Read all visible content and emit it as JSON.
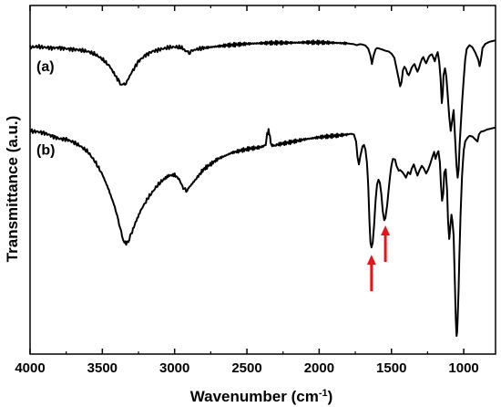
{
  "chart_data": {
    "type": "line",
    "xlabel": "Wavenumber (cm",
    "xlabel_superscript": "-1",
    "xlabel_suffix": ")",
    "ylabel": "Transmittance (a.u.)",
    "xlim": [
      4000,
      780
    ],
    "x_reversed": true,
    "ylim": [
      0,
      100
    ],
    "y_tick_labels": false,
    "x_ticks": [
      4000,
      3500,
      3000,
      2500,
      2000,
      1500,
      1000
    ],
    "x_tick_labels": [
      "4000",
      "3500",
      "3000",
      "2500",
      "2000",
      "1500",
      "1000"
    ],
    "grid": false,
    "series": [
      {
        "name": "(a)",
        "color": "#000000",
        "points": [
          [
            4000,
            88.0
          ],
          [
            3950,
            88.2
          ],
          [
            3900,
            88.0
          ],
          [
            3850,
            87.8
          ],
          [
            3800,
            87.9
          ],
          [
            3750,
            87.6
          ],
          [
            3700,
            87.4
          ],
          [
            3650,
            87.2
          ],
          [
            3600,
            86.8
          ],
          [
            3550,
            86.0
          ],
          [
            3500,
            84.6
          ],
          [
            3450,
            82.6
          ],
          [
            3420,
            80.6
          ],
          [
            3390,
            78.5
          ],
          [
            3370,
            77.4
          ],
          [
            3350,
            77.2
          ],
          [
            3330,
            78.2
          ],
          [
            3300,
            80.6
          ],
          [
            3250,
            84.0
          ],
          [
            3200,
            85.8
          ],
          [
            3150,
            86.9
          ],
          [
            3100,
            87.4
          ],
          [
            3050,
            87.9
          ],
          [
            3000,
            88.1
          ],
          [
            2950,
            87.9
          ],
          [
            2920,
            86.8
          ],
          [
            2900,
            86.4
          ],
          [
            2880,
            87.0
          ],
          [
            2850,
            87.4
          ],
          [
            2800,
            87.8
          ],
          [
            2700,
            88.3
          ],
          [
            2600,
            88.7
          ],
          [
            2500,
            89.0
          ],
          [
            2400,
            89.2
          ],
          [
            2300,
            89.3
          ],
          [
            2200,
            89.3
          ],
          [
            2100,
            89.4
          ],
          [
            2000,
            89.4
          ],
          [
            1900,
            89.3
          ],
          [
            1800,
            89.1
          ],
          [
            1760,
            88.9
          ],
          [
            1740,
            88.6
          ],
          [
            1720,
            88.9
          ],
          [
            1700,
            88.8
          ],
          [
            1680,
            88.5
          ],
          [
            1660,
            87.6
          ],
          [
            1645,
            85.6
          ],
          [
            1635,
            83.2
          ],
          [
            1625,
            85.4
          ],
          [
            1610,
            87.4
          ],
          [
            1600,
            87.8
          ],
          [
            1580,
            87.6
          ],
          [
            1560,
            87.3
          ],
          [
            1540,
            87.0
          ],
          [
            1520,
            86.8
          ],
          [
            1500,
            86.2
          ],
          [
            1480,
            85.0
          ],
          [
            1465,
            82.0
          ],
          [
            1450,
            79.0
          ],
          [
            1440,
            76.8
          ],
          [
            1430,
            78.0
          ],
          [
            1420,
            81.5
          ],
          [
            1410,
            82.4
          ],
          [
            1400,
            81.8
          ],
          [
            1390,
            80.5
          ],
          [
            1380,
            80.0
          ],
          [
            1370,
            81.0
          ],
          [
            1360,
            82.2
          ],
          [
            1350,
            82.8
          ],
          [
            1340,
            83.2
          ],
          [
            1330,
            82.0
          ],
          [
            1320,
            81.0
          ],
          [
            1310,
            82.0
          ],
          [
            1300,
            83.4
          ],
          [
            1290,
            84.6
          ],
          [
            1280,
            85.2
          ],
          [
            1270,
            84.2
          ],
          [
            1260,
            83.4
          ],
          [
            1250,
            84.4
          ],
          [
            1240,
            85.4
          ],
          [
            1230,
            85.8
          ],
          [
            1220,
            86.0
          ],
          [
            1210,
            85.0
          ],
          [
            1200,
            84.0
          ],
          [
            1190,
            85.6
          ],
          [
            1180,
            86.6
          ],
          [
            1170,
            84.0
          ],
          [
            1160,
            79.0
          ],
          [
            1152,
            72.0
          ],
          [
            1145,
            75.0
          ],
          [
            1140,
            80.0
          ],
          [
            1130,
            82.0
          ],
          [
            1120,
            79.5
          ],
          [
            1110,
            74.0
          ],
          [
            1100,
            68.0
          ],
          [
            1090,
            64.0
          ],
          [
            1080,
            67.0
          ],
          [
            1070,
            70.0
          ],
          [
            1060,
            62.0
          ],
          [
            1050,
            54.0
          ],
          [
            1042,
            50.6
          ],
          [
            1035,
            53.0
          ],
          [
            1028,
            60.0
          ],
          [
            1020,
            66.0
          ],
          [
            1010,
            73.0
          ],
          [
            1000,
            79.0
          ],
          [
            990,
            84.5
          ],
          [
            980,
            87.5
          ],
          [
            960,
            88.6
          ],
          [
            940,
            88.0
          ],
          [
            920,
            86.5
          ],
          [
            900,
            84.5
          ],
          [
            890,
            82.6
          ],
          [
            882,
            84.2
          ],
          [
            870,
            87.8
          ],
          [
            850,
            89.0
          ],
          [
            820,
            89.6
          ],
          [
            800,
            89.8
          ],
          [
            780,
            90.0
          ]
        ]
      },
      {
        "name": "(b)",
        "color": "#000000",
        "points": [
          [
            4000,
            64.0
          ],
          [
            3950,
            63.8
          ],
          [
            3900,
            63.4
          ],
          [
            3850,
            62.6
          ],
          [
            3800,
            61.8
          ],
          [
            3750,
            61.6
          ],
          [
            3700,
            60.8
          ],
          [
            3650,
            59.6
          ],
          [
            3600,
            58.0
          ],
          [
            3550,
            55.2
          ],
          [
            3500,
            51.5
          ],
          [
            3460,
            47.6
          ],
          [
            3420,
            43.0
          ],
          [
            3390,
            38.6
          ],
          [
            3370,
            34.8
          ],
          [
            3350,
            32.2
          ],
          [
            3335,
            31.8
          ],
          [
            3320,
            32.4
          ],
          [
            3300,
            34.4
          ],
          [
            3270,
            37.8
          ],
          [
            3230,
            41.6
          ],
          [
            3180,
            45.0
          ],
          [
            3130,
            47.8
          ],
          [
            3080,
            50.0
          ],
          [
            3040,
            51.2
          ],
          [
            3000,
            51.4
          ],
          [
            2970,
            50.2
          ],
          [
            2940,
            47.6
          ],
          [
            2920,
            46.8
          ],
          [
            2900,
            47.8
          ],
          [
            2860,
            49.8
          ],
          [
            2800,
            53.0
          ],
          [
            2700,
            56.0
          ],
          [
            2600,
            57.8
          ],
          [
            2500,
            58.8
          ],
          [
            2400,
            59.4
          ],
          [
            2370,
            60.0
          ],
          [
            2360,
            63.2
          ],
          [
            2350,
            64.0
          ],
          [
            2340,
            62.6
          ],
          [
            2335,
            60.4
          ],
          [
            2320,
            59.6
          ],
          [
            2300,
            60.0
          ],
          [
            2200,
            60.8
          ],
          [
            2100,
            61.6
          ],
          [
            2000,
            62.2
          ],
          [
            1900,
            62.6
          ],
          [
            1800,
            63.0
          ],
          [
            1780,
            63.2
          ],
          [
            1760,
            63.0
          ],
          [
            1745,
            61.0
          ],
          [
            1735,
            56.6
          ],
          [
            1725,
            54.4
          ],
          [
            1715,
            56.8
          ],
          [
            1700,
            59.6
          ],
          [
            1690,
            60.0
          ],
          [
            1680,
            58.6
          ],
          [
            1670,
            55.0
          ],
          [
            1660,
            48.0
          ],
          [
            1652,
            38.0
          ],
          [
            1645,
            32.0
          ],
          [
            1638,
            30.6
          ],
          [
            1630,
            31.8
          ],
          [
            1620,
            37.0
          ],
          [
            1610,
            44.0
          ],
          [
            1600,
            48.6
          ],
          [
            1590,
            50.0
          ],
          [
            1580,
            49.2
          ],
          [
            1570,
            46.0
          ],
          [
            1560,
            41.0
          ],
          [
            1550,
            38.4
          ],
          [
            1542,
            39.0
          ],
          [
            1530,
            42.6
          ],
          [
            1520,
            47.0
          ],
          [
            1510,
            51.0
          ],
          [
            1500,
            54.0
          ],
          [
            1490,
            56.0
          ],
          [
            1475,
            55.8
          ],
          [
            1465,
            54.0
          ],
          [
            1450,
            52.6
          ],
          [
            1440,
            52.8
          ],
          [
            1420,
            52.0
          ],
          [
            1400,
            50.6
          ],
          [
            1385,
            52.2
          ],
          [
            1370,
            51.6
          ],
          [
            1360,
            53.2
          ],
          [
            1345,
            54.4
          ],
          [
            1330,
            52.4
          ],
          [
            1320,
            51.2
          ],
          [
            1305,
            52.8
          ],
          [
            1290,
            54.0
          ],
          [
            1275,
            53.2
          ],
          [
            1260,
            51.8
          ],
          [
            1245,
            53.0
          ],
          [
            1230,
            54.8
          ],
          [
            1215,
            56.8
          ],
          [
            1205,
            58.0
          ],
          [
            1195,
            56.0
          ],
          [
            1185,
            57.4
          ],
          [
            1175,
            58.2
          ],
          [
            1165,
            55.0
          ],
          [
            1158,
            49.0
          ],
          [
            1150,
            44.0
          ],
          [
            1142,
            46.0
          ],
          [
            1135,
            52.0
          ],
          [
            1125,
            53.0
          ],
          [
            1115,
            47.0
          ],
          [
            1108,
            38.0
          ],
          [
            1100,
            33.0
          ],
          [
            1092,
            37.0
          ],
          [
            1085,
            40.0
          ],
          [
            1078,
            38.0
          ],
          [
            1070,
            34.0
          ],
          [
            1062,
            22.0
          ],
          [
            1055,
            10.0
          ],
          [
            1050,
            5.2
          ],
          [
            1046,
            6.2
          ],
          [
            1042,
            10.0
          ],
          [
            1036,
            18.0
          ],
          [
            1030,
            28.0
          ],
          [
            1022,
            40.0
          ],
          [
            1012,
            51.0
          ],
          [
            1000,
            58.5
          ],
          [
            990,
            61.0
          ],
          [
            975,
            62.0
          ],
          [
            960,
            62.6
          ],
          [
            940,
            62.4
          ],
          [
            920,
            61.6
          ],
          [
            905,
            61.0
          ],
          [
            895,
            63.0
          ],
          [
            880,
            63.8
          ],
          [
            860,
            64.0
          ],
          [
            840,
            64.4
          ],
          [
            820,
            64.6
          ],
          [
            800,
            64.8
          ],
          [
            780,
            65.0
          ]
        ]
      }
    ],
    "annotations": [
      {
        "type": "arrow",
        "color": "#e8141a",
        "x": 1638,
        "series": "(b)",
        "direction": "up"
      },
      {
        "type": "arrow",
        "color": "#e8141a",
        "x": 1542,
        "series": "(b)",
        "direction": "up"
      }
    ]
  }
}
